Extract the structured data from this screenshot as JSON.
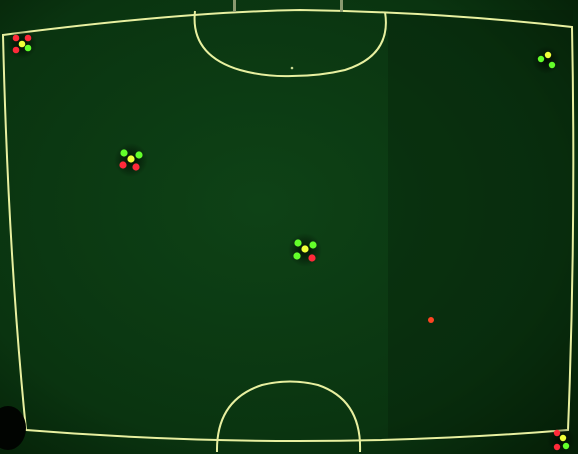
{
  "scene": {
    "subject": "overhead-camera-view-of-robot-soccer-field",
    "colors": {
      "turf": "#0c3a12",
      "turf_dark": "#062308",
      "line": "#e8f0a0",
      "marker_green": "#63ff2a",
      "marker_red": "#ff2a3a",
      "marker_yellow": "#f0ff39",
      "ball": "#ff4422",
      "robot_shadow": "#031103"
    },
    "robots": [
      {
        "id": "robot-1",
        "markers": [
          "red",
          "yellow",
          "green",
          "red",
          "green"
        ]
      },
      {
        "id": "robot-2",
        "markers": [
          "yellow",
          "green",
          "green"
        ]
      },
      {
        "id": "robot-3",
        "markers": [
          "green",
          "yellow",
          "green",
          "red",
          "red"
        ]
      },
      {
        "id": "robot-4",
        "markers": [
          "green",
          "yellow",
          "green",
          "green",
          "red"
        ]
      },
      {
        "id": "robot-5",
        "markers": [
          "red",
          "yellow",
          "red",
          "green"
        ]
      }
    ],
    "ball": {
      "color": "orange-red"
    }
  }
}
